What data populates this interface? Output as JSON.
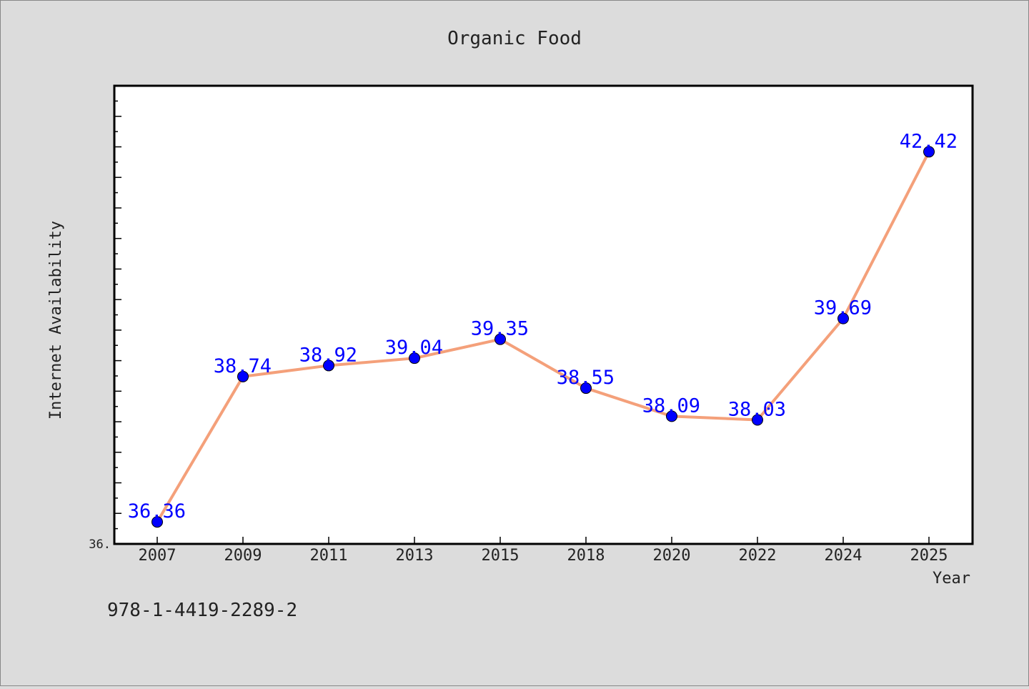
{
  "chart_data": {
    "type": "line",
    "title": "Organic Food",
    "xlabel": "Year",
    "ylabel": "Internet Availability",
    "categories": [
      "2007",
      "2009",
      "2011",
      "2013",
      "2015",
      "2018",
      "2020",
      "2022",
      "2024",
      "2025"
    ],
    "series": [
      {
        "values": [
          36.36,
          38.74,
          38.92,
          39.04,
          39.35,
          38.55,
          38.09,
          38.03,
          39.69,
          42.42
        ],
        "value_labels": [
          "36.36",
          "38.74",
          "38.92",
          "39.04",
          "39.35",
          "38.55",
          "38.09",
          "38.03",
          "39.69",
          "42.42"
        ]
      }
    ],
    "ylim": [
      36.0,
      43.5
    ],
    "y_tick_labels": [
      "36."
    ],
    "grid": false,
    "legend": "none",
    "colors": {
      "line": "#f4a07a",
      "marker": "#0000ff",
      "data_label": "#0000ff",
      "plot_background": "#ffffff",
      "figure_background": "#dcdcdc"
    }
  },
  "footer": {
    "isbn": "978-1-4419-2289-2"
  }
}
